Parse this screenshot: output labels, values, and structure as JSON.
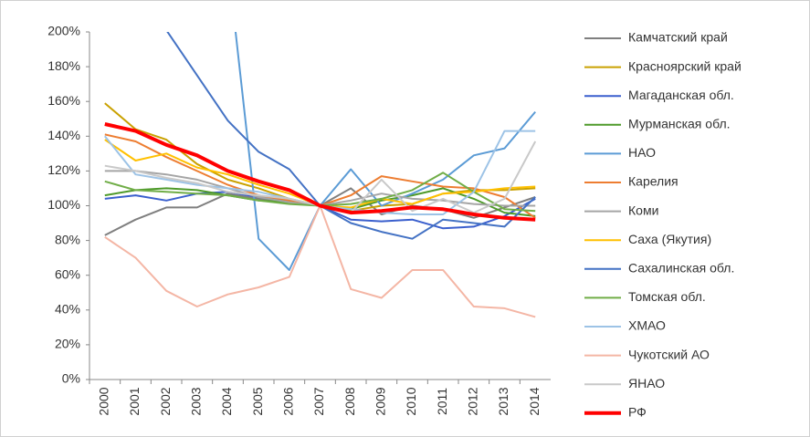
{
  "chart_data": {
    "type": "line",
    "categories": [
      "2000",
      "2001",
      "2002",
      "2003",
      "2004",
      "2005",
      "2006",
      "2007",
      "2008",
      "2009",
      "2010",
      "2011",
      "2012",
      "2013",
      "2014"
    ],
    "ylim": [
      0,
      200
    ],
    "yticks": [
      {
        "value": 0,
        "label": "0%"
      },
      {
        "value": 20,
        "label": "20%"
      },
      {
        "value": 40,
        "label": "40%"
      },
      {
        "value": 60,
        "label": "60%"
      },
      {
        "value": 80,
        "label": "80%"
      },
      {
        "value": 100,
        "label": "100%"
      },
      {
        "value": 120,
        "label": "120%"
      },
      {
        "value": 140,
        "label": "140%"
      },
      {
        "value": 160,
        "label": "160%"
      },
      {
        "value": 180,
        "label": "180%"
      },
      {
        "value": 200,
        "label": "200%"
      }
    ],
    "grid": false,
    "legend": "right",
    "series": [
      {
        "name": "Камчатский край",
        "color": "#7f7f7f",
        "values": [
          83,
          92,
          99,
          99,
          107,
          104,
          102,
          100,
          110,
          95,
          100,
          98,
          93,
          99,
          105
        ]
      },
      {
        "name": "Красноярский край",
        "color": "#c9a100",
        "values": [
          159,
          144,
          138,
          124,
          115,
          110,
          104,
          100,
          97,
          100,
          101,
          107,
          109,
          109,
          110
        ]
      },
      {
        "name": "Магаданская обл.",
        "color": "#3a5fcd",
        "values": [
          104,
          106,
          103,
          107,
          108,
          105,
          103,
          100,
          92,
          91,
          92,
          87,
          88,
          94,
          104
        ]
      },
      {
        "name": "Мурманская обл.",
        "color": "#4e9a2a",
        "values": [
          106,
          109,
          110,
          109,
          106,
          103,
          102,
          100,
          98,
          103,
          106,
          110,
          104,
          96,
          94
        ]
      },
      {
        "name": "НАО",
        "color": "#5b9bd5",
        "values": [
          null,
          null,
          null,
          null,
          240,
          81,
          63,
          100,
          121,
          100,
          107,
          115,
          129,
          133,
          154
        ]
      },
      {
        "name": "Карелия",
        "color": "#ed7d31",
        "values": [
          141,
          137,
          128,
          120,
          112,
          106,
          103,
          100,
          106,
          117,
          114,
          111,
          110,
          105,
          93
        ]
      },
      {
        "name": "Коми",
        "color": "#a5a5a5",
        "values": [
          120,
          120,
          118,
          115,
          110,
          105,
          102,
          100,
          103,
          107,
          104,
          103,
          101,
          100,
          100
        ]
      },
      {
        "name": "Саха (Якутия)",
        "color": "#ffc000",
        "values": [
          138,
          126,
          130,
          122,
          118,
          112,
          107,
          100,
          99,
          104,
          101,
          107,
          108,
          110,
          111
        ]
      },
      {
        "name": "Сахалинская обл.",
        "color": "#4472c4",
        "values": [
          null,
          null,
          201,
          175,
          149,
          131,
          121,
          100,
          90,
          85,
          81,
          92,
          90,
          88,
          105
        ]
      },
      {
        "name": "Томская обл.",
        "color": "#70ad47",
        "values": [
          114,
          109,
          108,
          107,
          106,
          103,
          101,
          100,
          101,
          104,
          109,
          119,
          108,
          98,
          97
        ]
      },
      {
        "name": "ХМАО",
        "color": "#9dc3e6",
        "values": [
          140,
          118,
          115,
          112,
          110,
          108,
          104,
          100,
          98,
          96,
          95,
          95,
          108,
          143,
          143
        ]
      },
      {
        "name": "Чукотский АО",
        "color": "#f4b6a5",
        "values": [
          82,
          70,
          51,
          42,
          49,
          53,
          59,
          100,
          52,
          47,
          63,
          63,
          42,
          41,
          36
        ]
      },
      {
        "name": "ЯНАО",
        "color": "#c9c9c9",
        "values": [
          123,
          120,
          116,
          113,
          108,
          106,
          104,
          100,
          96,
          115,
          97,
          104,
          96,
          104,
          137
        ]
      },
      {
        "name": "РФ",
        "color": "#ff0000",
        "values": [
          147,
          143,
          135,
          129,
          120,
          114,
          109,
          100,
          96,
          97,
          99,
          98,
          95,
          93,
          92
        ]
      }
    ]
  }
}
